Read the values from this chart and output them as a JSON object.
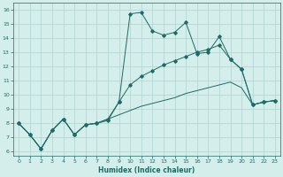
{
  "xlabel": "Humidex (Indice chaleur)",
  "background_color": "#d4eeeb",
  "grid_color": "#aed4d0",
  "line_color": "#1e6b65",
  "xlim": [
    -0.5,
    23.5
  ],
  "ylim": [
    5.7,
    16.5
  ],
  "xticks": [
    0,
    1,
    2,
    3,
    4,
    5,
    6,
    7,
    8,
    9,
    10,
    11,
    12,
    13,
    14,
    15,
    16,
    17,
    18,
    19,
    20,
    21,
    22,
    23
  ],
  "yticks": [
    6,
    7,
    8,
    9,
    10,
    11,
    12,
    13,
    14,
    15,
    16
  ],
  "series1_y": [
    8.0,
    7.2,
    6.2,
    7.5,
    8.3,
    7.2,
    7.9,
    8.0,
    8.2,
    9.5,
    15.7,
    15.8,
    14.5,
    14.2,
    14.4,
    15.1,
    12.9,
    13.0,
    14.1,
    12.5,
    11.8,
    9.3,
    9.5,
    9.6
  ],
  "series2_y": [
    8.0,
    7.2,
    6.2,
    7.5,
    8.3,
    7.2,
    7.9,
    8.0,
    8.3,
    9.5,
    10.7,
    11.3,
    11.7,
    12.1,
    12.4,
    12.7,
    13.0,
    13.2,
    13.5,
    12.5,
    11.8,
    9.3,
    9.5,
    9.6
  ],
  "series3_y": [
    8.0,
    7.2,
    6.2,
    7.5,
    8.3,
    7.2,
    7.9,
    8.0,
    8.3,
    8.6,
    8.9,
    9.2,
    9.4,
    9.6,
    9.8,
    10.1,
    10.3,
    10.5,
    10.7,
    10.9,
    10.5,
    9.3,
    9.5,
    9.6
  ]
}
